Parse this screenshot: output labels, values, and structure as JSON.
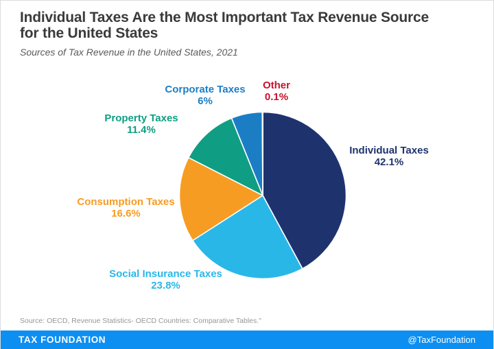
{
  "header": {
    "title": "Individual Taxes Are the Most Important Tax Revenue Source for the United States",
    "subtitle": "Sources of Tax Revenue in the United States, 2021"
  },
  "chart_data": {
    "type": "pie",
    "title": "Sources of Tax Revenue in the United States, 2021",
    "start_angle_deg": 0,
    "direction": "clockwise",
    "stroke_color": "#ffffff",
    "slices": [
      {
        "label": "Individual Taxes",
        "value": 42.1,
        "pct_label": "42.1%",
        "color": "#1e336e"
      },
      {
        "label": "Social Insurance Taxes",
        "value": 23.8,
        "pct_label": "23.8%",
        "color": "#29b7e8"
      },
      {
        "label": "Consumption Taxes",
        "value": 16.6,
        "pct_label": "16.6%",
        "color": "#f79c23"
      },
      {
        "label": "Property Taxes",
        "value": 11.4,
        "pct_label": "11.4%",
        "color": "#0f9e83"
      },
      {
        "label": "Corporate Taxes",
        "value": 6,
        "pct_label": "6%",
        "color": "#1b7ec5"
      },
      {
        "label": "Other",
        "value": 0.1,
        "pct_label": "0.1%",
        "color": "#c8102e"
      }
    ]
  },
  "footer": {
    "source": "Source: OECD, Revenue Statistics- OECD Countries: Comparative Tables.\"",
    "brand": "TAX FOUNDATION",
    "handle": "@TaxFoundation",
    "bar_color": "#0d8ff2"
  }
}
